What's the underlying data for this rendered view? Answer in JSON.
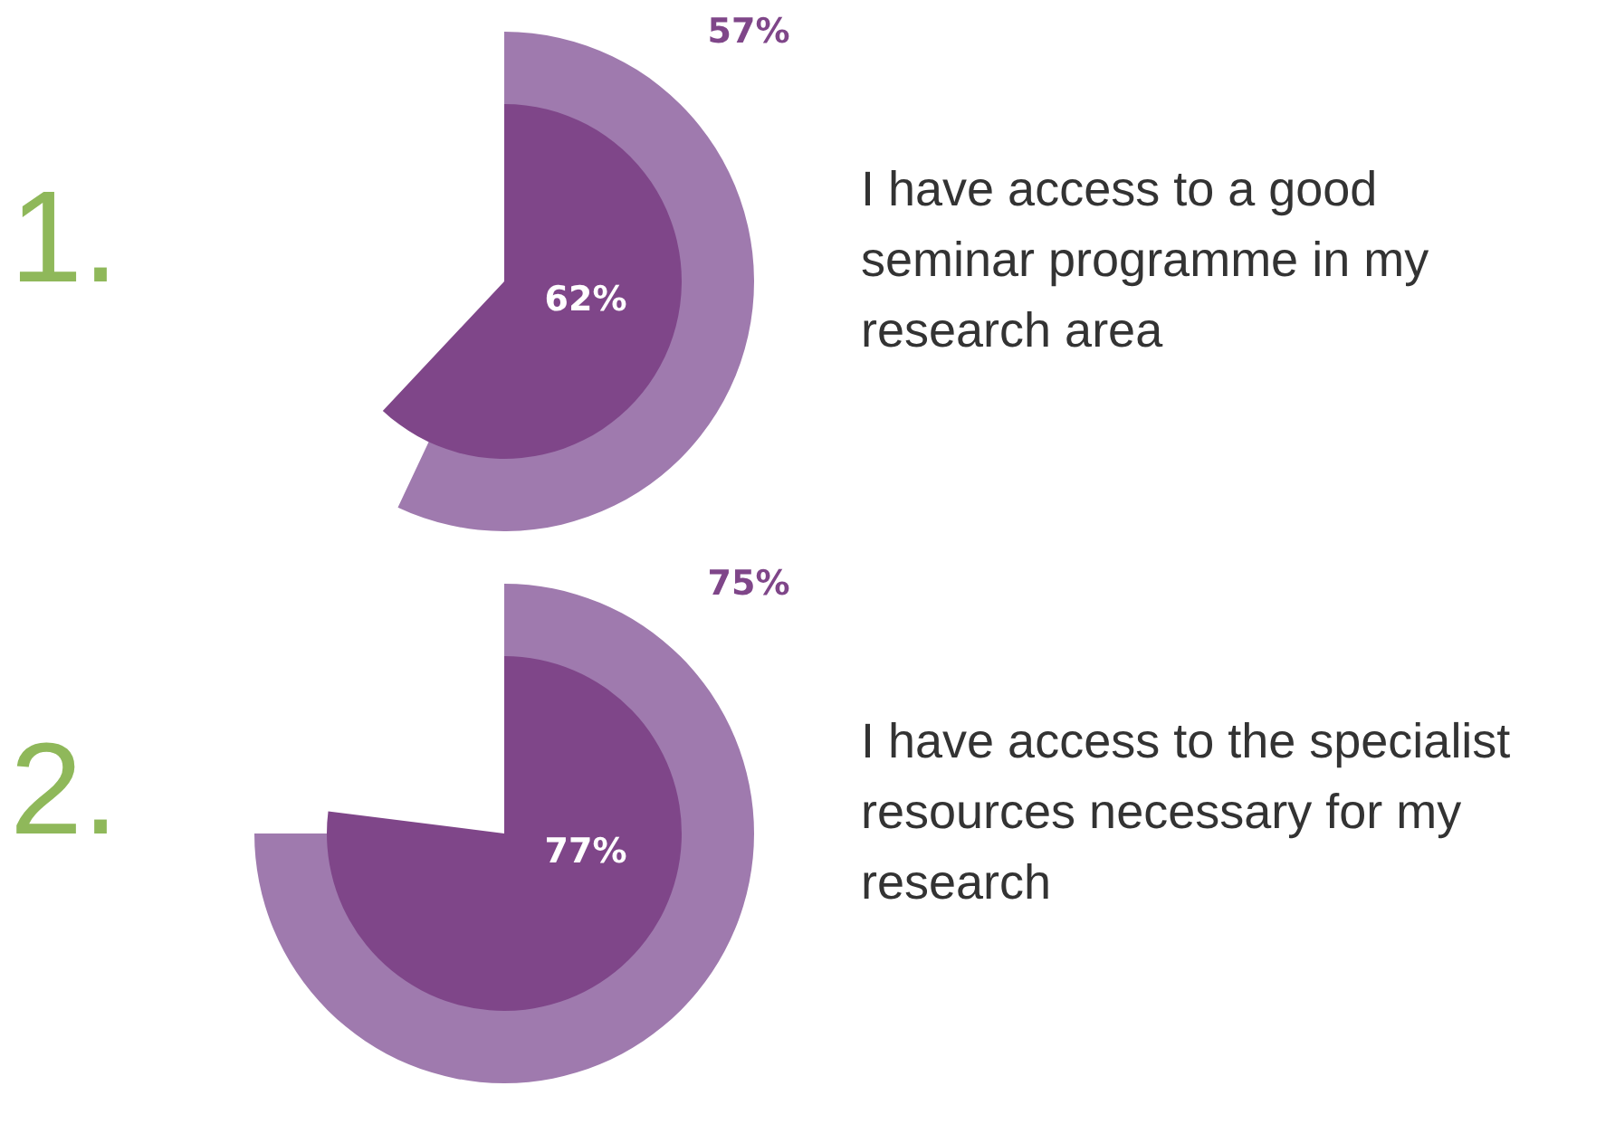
{
  "chart_data": [
    {
      "type": "other",
      "title": "1.",
      "annotations": [
        "I have access to a good\nseminar programme in my\nresearch area"
      ],
      "categories": [
        null,
        null
      ],
      "values": [
        57,
        62
      ],
      "value_labels": [
        "57%",
        "62%"
      ],
      "colors": [
        "#9f7aae",
        "#7f4689"
      ]
    },
    {
      "type": "other",
      "title": "2.",
      "annotations": [
        "I have access to the specialist\nresources necessary for my\nresearch"
      ],
      "categories": [
        null,
        null
      ],
      "values": [
        75,
        77
      ],
      "value_labels": [
        "75%",
        "77%"
      ],
      "colors": [
        "#9f7aae",
        "#7f4689"
      ]
    }
  ]
}
